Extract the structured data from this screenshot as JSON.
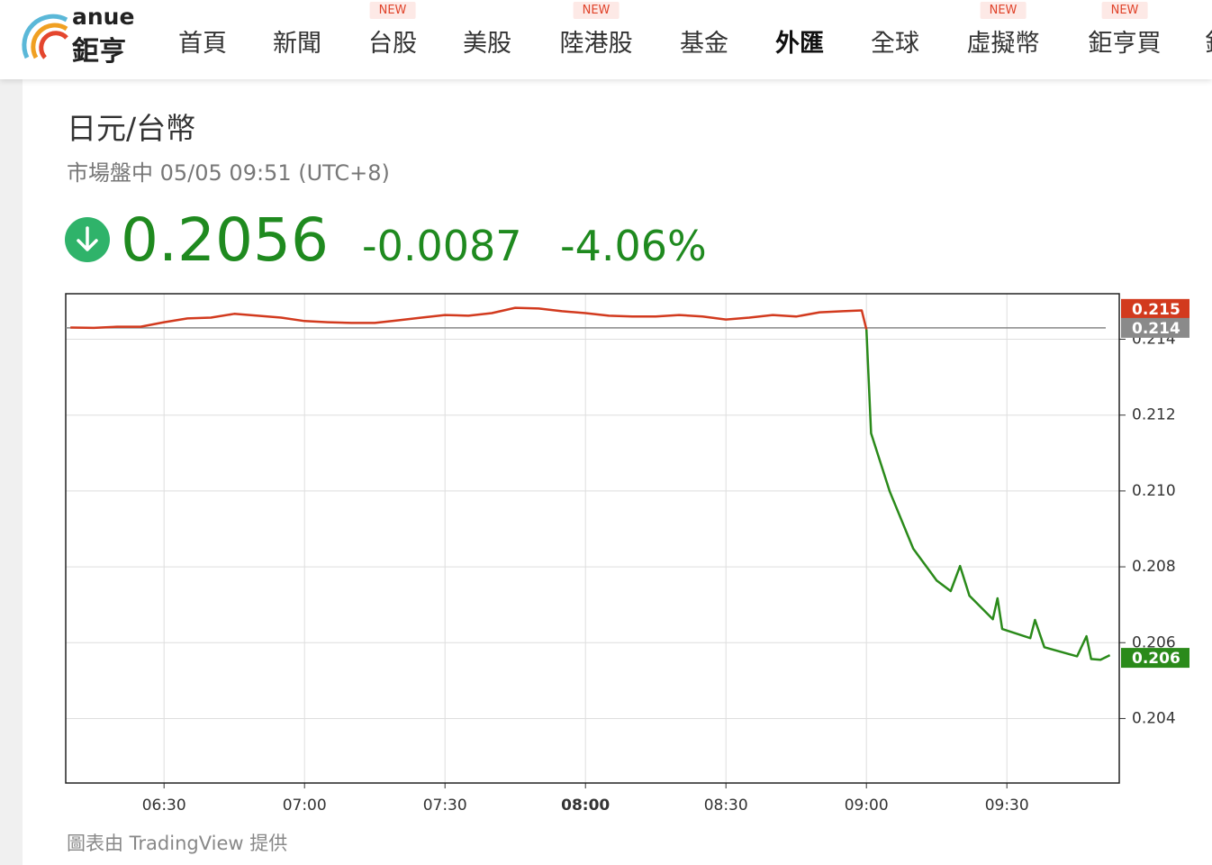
{
  "header": {
    "brand": {
      "word": "anue",
      "name": "鉅亨"
    },
    "nav": [
      {
        "label": "首頁"
      },
      {
        "label": "新聞"
      },
      {
        "label": "台股",
        "badge": "NEW"
      },
      {
        "label": "美股"
      },
      {
        "label": "陸港股",
        "badge": "NEW"
      },
      {
        "label": "基金"
      },
      {
        "label": "外匯",
        "active": true
      },
      {
        "label": "全球"
      },
      {
        "label": "虛擬幣",
        "badge": "NEW"
      },
      {
        "label": "鉅亨買",
        "badge": "NEW"
      },
      {
        "label": "鉅"
      }
    ]
  },
  "quote": {
    "name": "日元/台幣",
    "status": "市場盤中 05/05 09:51 (UTC+8)",
    "price": "0.2056",
    "change": "-0.0087",
    "change_pct": "-4.06%"
  },
  "chart_data": {
    "type": "line",
    "x": [
      "06:10",
      "06:15",
      "06:20",
      "06:25",
      "06:30",
      "06:35",
      "06:40",
      "06:45",
      "06:50",
      "06:55",
      "07:00",
      "07:05",
      "07:10",
      "07:15",
      "07:20",
      "07:25",
      "07:30",
      "07:35",
      "07:40",
      "07:45",
      "07:50",
      "07:55",
      "08:00",
      "08:05",
      "08:10",
      "08:15",
      "08:20",
      "08:25",
      "08:30",
      "08:35",
      "08:40",
      "08:45",
      "08:50",
      "08:55",
      "08:59",
      "09:00",
      "09:01",
      "09:05",
      "09:10",
      "09:15",
      "09:18",
      "09:20",
      "09:22",
      "09:27",
      "09:28",
      "09:29",
      "09:35",
      "09:36",
      "09:38",
      "09:45",
      "09:47",
      "09:48",
      "09:50",
      "09:52"
    ],
    "series": [
      {
        "color": "#d23a1e",
        "values": [
          0.21431,
          0.2143,
          0.21433,
          0.21433,
          0.21445,
          0.21455,
          0.21457,
          0.21467,
          0.21462,
          0.21457,
          0.21448,
          0.21445,
          0.21443,
          0.21443,
          0.2145,
          0.21457,
          0.21464,
          0.21462,
          0.21469,
          0.21483,
          0.21481,
          0.21474,
          0.21469,
          0.21462,
          0.2146,
          0.2146,
          0.21464,
          0.2146,
          0.21452,
          0.21457,
          0.21464,
          0.2146,
          0.21471,
          0.21474,
          0.21476,
          0.21426,
          null,
          null,
          null,
          null,
          null,
          null,
          null,
          null,
          null,
          null,
          null,
          null,
          null,
          null,
          null,
          null,
          null,
          null
        ]
      },
      {
        "color": "#2a8a1a",
        "values": [
          null,
          null,
          null,
          null,
          null,
          null,
          null,
          null,
          null,
          null,
          null,
          null,
          null,
          null,
          null,
          null,
          null,
          null,
          null,
          null,
          null,
          null,
          null,
          null,
          null,
          null,
          null,
          null,
          null,
          null,
          null,
          null,
          null,
          null,
          null,
          0.21426,
          0.21152,
          0.20998,
          0.20848,
          0.20764,
          0.20736,
          0.20802,
          0.20724,
          0.20662,
          0.20717,
          0.20636,
          0.20612,
          0.2066,
          0.20588,
          0.20564,
          0.20617,
          0.20557,
          0.20555,
          0.20567
        ]
      }
    ],
    "xlim": [
      "06:09",
      "09:54"
    ],
    "xticks": [
      "06:30",
      "07:00",
      "07:30",
      "08:00",
      "08:30",
      "09:00",
      "09:30"
    ],
    "highlight_xtick": "08:00",
    "ylim": [
      0.2023,
      0.2152
    ],
    "yticks": [
      0.204,
      0.206,
      0.208,
      {
        "value": 0.21,
        "label": "0.210"
      },
      0.212,
      0.214
    ],
    "grid": true,
    "reference_line": {
      "value": 0.2143,
      "color": "#888888"
    },
    "price_labels": [
      {
        "value": 0.2148,
        "label": "0.215",
        "color": "#d23a1e"
      },
      {
        "value": 0.2143,
        "label": "0.214",
        "color": "#8a8a8a"
      },
      {
        "value": 0.2056,
        "label": "0.206",
        "color": "#2a8a1a"
      }
    ],
    "source": "圖表由 TradingView 提供"
  }
}
